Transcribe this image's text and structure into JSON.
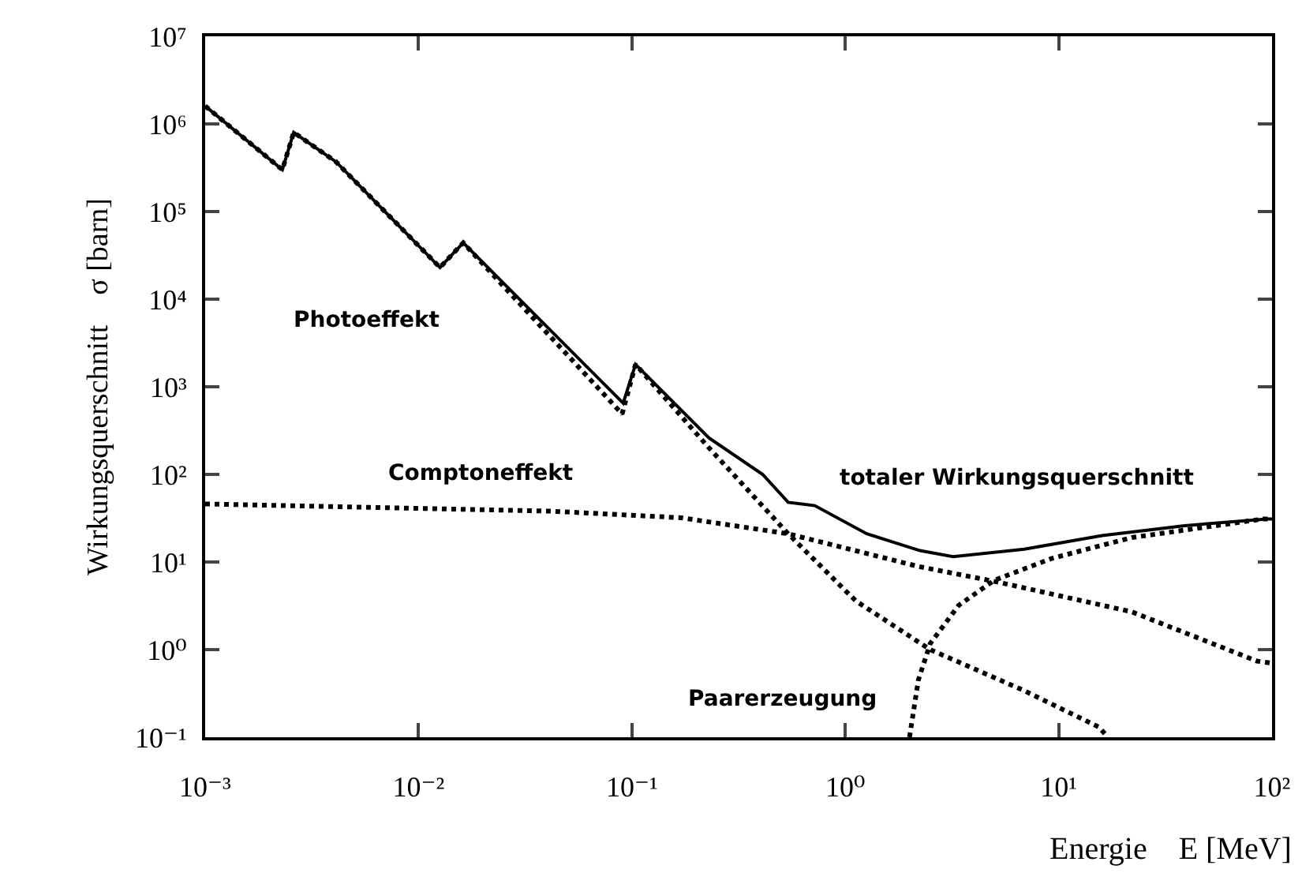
{
  "chart_data": {
    "type": "line",
    "xlabel": "Energie    E [MeV]",
    "ylabel": "Wirkungsquerschnitt    σ [barn]",
    "log": "xy",
    "grid": false,
    "xlim": [
      0.001,
      100
    ],
    "ylim": [
      0.1,
      10000000
    ],
    "xticks": [
      {
        "value": 0.001,
        "label": "10⁻³"
      },
      {
        "value": 0.01,
        "label": "10⁻²"
      },
      {
        "value": 0.1,
        "label": "10⁻¹"
      },
      {
        "value": 1,
        "label": "10⁰"
      },
      {
        "value": 10,
        "label": "10¹"
      },
      {
        "value": 100,
        "label": "10²"
      }
    ],
    "yticks": [
      {
        "value": 0.1,
        "label": "10⁻¹"
      },
      {
        "value": 1,
        "label": "10⁰"
      },
      {
        "value": 10,
        "label": "10¹"
      },
      {
        "value": 100,
        "label": "10²"
      },
      {
        "value": 1000,
        "label": "10³"
      },
      {
        "value": 10000,
        "label": "10⁴"
      },
      {
        "value": 100000,
        "label": "10⁵"
      },
      {
        "value": 1000000,
        "label": "10⁶"
      },
      {
        "value": 10000000,
        "label": "10⁷"
      }
    ],
    "series": [
      {
        "color": "#000000",
        "line_style": "solid",
        "x": [
          0.001,
          0.0023,
          0.0026,
          0.0041,
          0.0126,
          0.0162,
          0.091,
          0.104,
          0.23,
          0.41,
          0.54,
          0.72,
          1.26,
          2.24,
          3.2,
          6.9,
          16,
          39,
          95,
          100
        ],
        "values": [
          1600000,
          300000,
          800000,
          370000,
          23000,
          44000,
          650,
          1800,
          260,
          100,
          48,
          44,
          21,
          13.5,
          11.5,
          14,
          20,
          26,
          31,
          31
        ]
      },
      {
        "color": "#000000",
        "line_style": "dotted",
        "x": [
          0.001,
          0.0023,
          0.0026,
          0.0041,
          0.0126,
          0.0162,
          0.09,
          0.104,
          0.23,
          0.54,
          1.12,
          2.5,
          6.9,
          15.5,
          17
        ],
        "values": [
          1600000,
          300000,
          800000,
          370000,
          23000,
          44000,
          490,
          1800,
          200,
          21,
          3.6,
          1.0,
          0.34,
          0.13,
          0.1
        ]
      },
      {
        "color": "#000000",
        "line_style": "dotted",
        "x": [
          0.001,
          0.042,
          0.17,
          0.54,
          2.2,
          5.2,
          22,
          85,
          100
        ],
        "values": [
          46,
          38,
          32,
          21,
          8.9,
          5.9,
          2.7,
          0.74,
          0.7
        ]
      },
      {
        "color": "#000000",
        "line_style": "dotted",
        "x": [
          2.0,
          2.2,
          2.5,
          3.4,
          5,
          9.3,
          22,
          91,
          100
        ],
        "values": [
          0.1,
          0.45,
          1.17,
          3.2,
          6.2,
          11,
          19,
          31,
          31
        ]
      }
    ],
    "annotations": [
      "Photoeffekt",
      "Comptoneffekt",
      "totaler Wirkungsquerschnitt",
      "Paarerzeugung"
    ]
  }
}
